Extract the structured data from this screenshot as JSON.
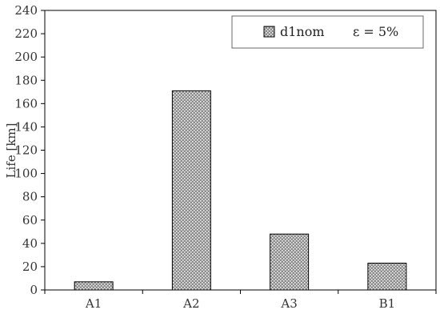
{
  "chart_data": {
    "type": "bar",
    "categories": [
      "A1",
      "A2",
      "A3",
      "B1"
    ],
    "series": [
      {
        "name": "d1nom",
        "values": [
          7,
          171,
          48,
          23
        ]
      }
    ],
    "ylabel": "Life [km]",
    "xlabel": "",
    "ylim": [
      0,
      240
    ],
    "yticks": [
      0,
      20,
      40,
      60,
      80,
      100,
      120,
      140,
      160,
      180,
      200,
      220,
      240
    ],
    "grid": false,
    "legend": {
      "position": "top-right",
      "note": "ε = 5%"
    },
    "colors": {
      "bar_fill": "#8c8c8c",
      "bar_pattern": "#ffffff",
      "bar_stroke": "#000000",
      "axis": "#000000"
    }
  }
}
